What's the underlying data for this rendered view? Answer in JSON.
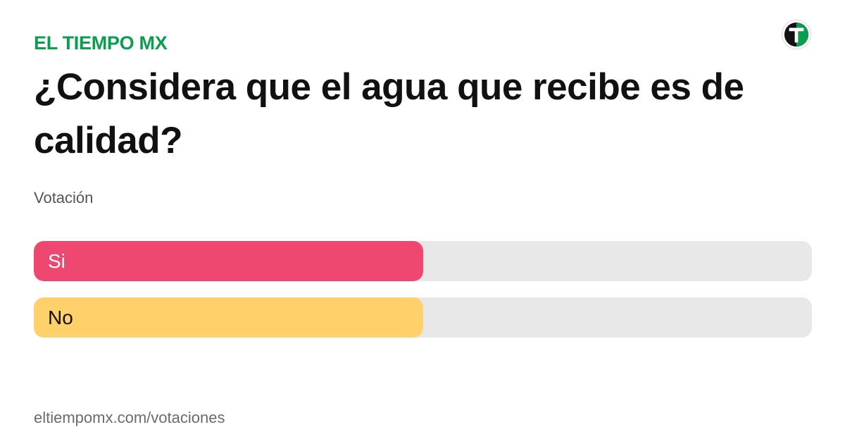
{
  "header": {
    "brand": "EL TIEMPO MX",
    "brand_color": "#0a9e4e",
    "logo_icon": "el-tiempo-t-logo"
  },
  "poll": {
    "question": "¿Considera que el agua que recibe es de calidad?",
    "subtitle": "Votación",
    "options": [
      {
        "label": "Si",
        "share": 0.5,
        "bar_color": "#ef4870",
        "text_color": "#ffffff"
      },
      {
        "label": "No",
        "share": 0.5,
        "bar_color": "#fed16a",
        "text_color": "#111111"
      }
    ],
    "track_color": "#e8e8e8"
  },
  "footer": {
    "url": "eltiempomx.com/votaciones"
  }
}
